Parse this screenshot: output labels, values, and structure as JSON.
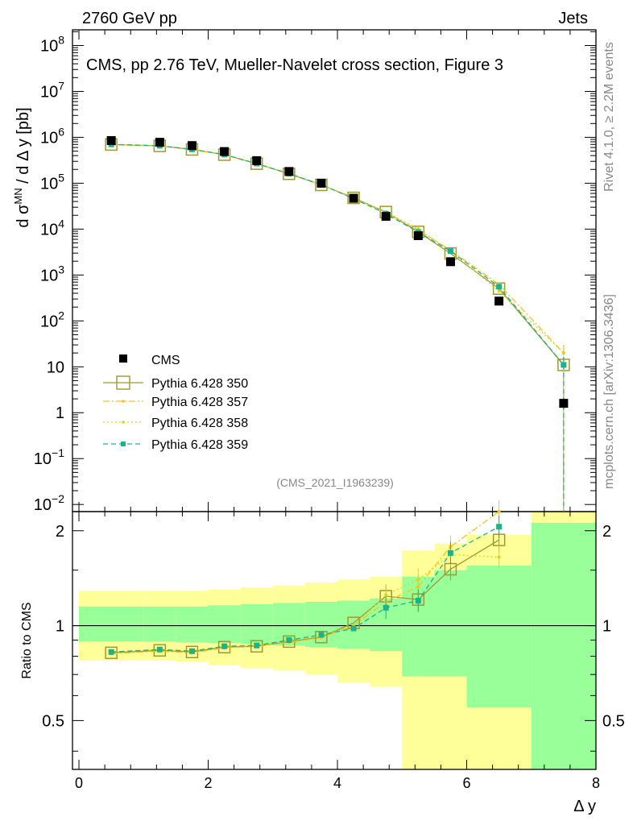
{
  "header": {
    "left": "2760 GeV pp",
    "right": "Jets",
    "title": "CMS, pp 2.76 TeV, Mueller-Navelet cross section, Figure 3",
    "analysis_id": "(CMS_2021_I1963239)",
    "side_top": "Rivet 4.1.0, ≥ 2.2M events",
    "side_bottom": "mcplots.cern.ch [arXiv:1306.3436]"
  },
  "chart_data": {
    "type": "line",
    "x_label": "Δ y",
    "y_label_main": "d σ^MN / d Δ y [pb]",
    "y_label_ratio": "Ratio to CMS",
    "xlim": [
      -0.1,
      8.0
    ],
    "ylim_main": [
      0.007,
      220000000.0
    ],
    "ylim_ratio": [
      0.35,
      2.3
    ],
    "y_scale_main": "log",
    "y_scale_ratio": "log",
    "x_ticks": [
      "0",
      "2",
      "4",
      "6",
      "8"
    ],
    "x_tick_values": [
      0,
      2,
      4,
      6,
      8
    ],
    "y_ticks_main": [
      {
        "value": 0.01,
        "base": "10",
        "exp": "−2"
      },
      {
        "value": 0.1,
        "base": "10",
        "exp": "−1"
      },
      {
        "value": 1,
        "base": "1",
        "exp": ""
      },
      {
        "value": 10,
        "base": "10",
        "exp": ""
      },
      {
        "value": 100,
        "base": "10",
        "exp": "2"
      },
      {
        "value": 1000,
        "base": "10",
        "exp": "3"
      },
      {
        "value": 10000,
        "base": "10",
        "exp": "4"
      },
      {
        "value": 100000,
        "base": "10",
        "exp": "5"
      },
      {
        "value": 1000000,
        "base": "10",
        "exp": "6"
      },
      {
        "value": 10000000,
        "base": "10",
        "exp": "7"
      },
      {
        "value": 100000000,
        "base": "10",
        "exp": "8"
      }
    ],
    "y_ticks_ratio": [
      {
        "value": 0.5,
        "label": "0.5"
      },
      {
        "value": 1,
        "label": "1"
      },
      {
        "value": 2,
        "label": "2"
      }
    ],
    "bin_edges": [
      0,
      1.0,
      1.5,
      2.0,
      2.5,
      3.0,
      3.5,
      4.0,
      4.5,
      5.0,
      5.5,
      6.0,
      7.0,
      8.0
    ],
    "x": [
      0.5,
      1.25,
      1.75,
      2.25,
      2.75,
      3.25,
      3.75,
      4.25,
      4.75,
      5.25,
      5.75,
      6.5,
      7.5
    ],
    "data": {
      "name": "CMS",
      "values": [
        850000,
        780000,
        660000,
        490000,
        310000,
        180000,
        100000,
        47000,
        19000,
        7200,
        1950,
        270,
        1.6
      ]
    },
    "band_inner": {
      "lo": [
        0.89,
        0.89,
        0.885,
        0.88,
        0.875,
        0.865,
        0.855,
        0.845,
        0.83,
        0.69,
        0.69,
        0.55,
        0.35
      ],
      "hi": [
        1.15,
        1.15,
        1.15,
        1.16,
        1.17,
        1.18,
        1.19,
        1.2,
        1.22,
        1.43,
        1.5,
        1.55,
        2.12
      ]
    },
    "band_outer": {
      "lo": [
        0.775,
        0.775,
        0.77,
        0.75,
        0.735,
        0.72,
        0.7,
        0.66,
        0.64,
        0.35,
        0.35,
        0.35,
        0.35
      ],
      "hi": [
        1.29,
        1.29,
        1.29,
        1.3,
        1.32,
        1.34,
        1.37,
        1.4,
        1.43,
        1.73,
        1.82,
        1.94,
        2.3
      ]
    },
    "series": [
      {
        "name": "Pythia 6.428 350",
        "color": "#a09832",
        "dash": "",
        "marker": "open-square",
        "ratio": [
          0.82,
          0.835,
          0.825,
          0.855,
          0.86,
          0.89,
          0.92,
          1.02,
          1.24,
          1.21,
          1.51,
          1.87,
          null
        ]
      },
      {
        "name": "Pythia 6.428 357",
        "color": "#f5c518",
        "dash": "8 3 2 3",
        "marker": "small-dot",
        "ratio": [
          0.815,
          0.83,
          0.82,
          0.85,
          0.86,
          0.885,
          0.915,
          1.0,
          1.19,
          1.33,
          1.78,
          2.3,
          null
        ]
      },
      {
        "name": "Pythia 6.428 358",
        "color": "#e0d020",
        "dash": "2 3",
        "marker": "small-dot",
        "ratio": [
          0.825,
          0.84,
          0.83,
          0.86,
          0.865,
          0.9,
          0.93,
          1.0,
          1.25,
          1.4,
          1.68,
          1.65,
          null
        ]
      },
      {
        "name": "Pythia 6.428 359",
        "color": "#1ab38a",
        "dash": "6 4",
        "marker": "filled-square",
        "ratio": [
          0.825,
          0.84,
          0.83,
          0.86,
          0.865,
          0.9,
          0.935,
          0.98,
          1.14,
          1.2,
          1.7,
          2.06,
          null
        ]
      }
    ],
    "tail_points": {
      "x": 7.5,
      "values": [
        11,
        20,
        20,
        11
      ]
    },
    "legend_position": "left-middle",
    "colors": {
      "band_inner": "#99ff99",
      "band_outer": "#ffff99",
      "data": "#000000"
    }
  }
}
